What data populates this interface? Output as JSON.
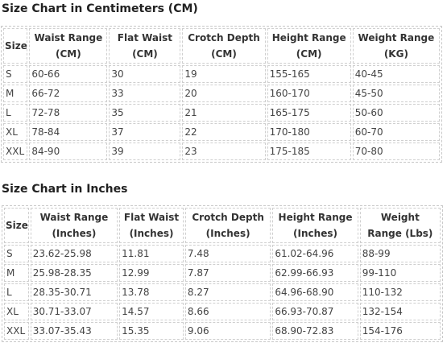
{
  "cm_chart": {
    "title": "Size Chart in Centimeters (CM)",
    "headers": [
      "Size",
      "Waist Range (CM)",
      "Flat Waist (CM)",
      "Crotch Depth (CM)",
      "Height Range (CM)",
      "Weight Range (KG)"
    ],
    "rows": [
      [
        "S",
        "60-66",
        "30",
        "19",
        "155-165",
        "40-45"
      ],
      [
        "M",
        "66-72",
        "33",
        "20",
        "160-170",
        "45-50"
      ],
      [
        "L",
        "72-78",
        "35",
        "21",
        "165-175",
        "50-60"
      ],
      [
        "XL",
        "78-84",
        "37",
        "22",
        "170-180",
        "60-70"
      ],
      [
        "XXL",
        "84-90",
        "39",
        "23",
        "175-185",
        "70-80"
      ]
    ]
  },
  "inch_chart": {
    "title": "Size Chart in Inches",
    "headers": [
      "Size",
      "Waist Range (Inches)",
      "Flat Waist (Inches)",
      "Crotch Depth (Inches)",
      "Height Range (Inches)",
      "Weight Range (Lbs)"
    ],
    "rows": [
      [
        "S",
        "23.62-25.98",
        "11.81",
        "7.48",
        "61.02-64.96",
        "88-99"
      ],
      [
        "M",
        "25.98-28.35",
        "12.99",
        "7.87",
        "62.99-66.93",
        "99-110"
      ],
      [
        "L",
        "28.35-30.71",
        "13.78",
        "8.27",
        "64.96-68.90",
        "110-132"
      ],
      [
        "XL",
        "30.71-33.07",
        "14.57",
        "8.66",
        "66.93-70.87",
        "132-154"
      ],
      [
        "XXL",
        "33.07-35.43",
        "15.35",
        "9.06",
        "68.90-72.83",
        "154-176"
      ]
    ]
  }
}
